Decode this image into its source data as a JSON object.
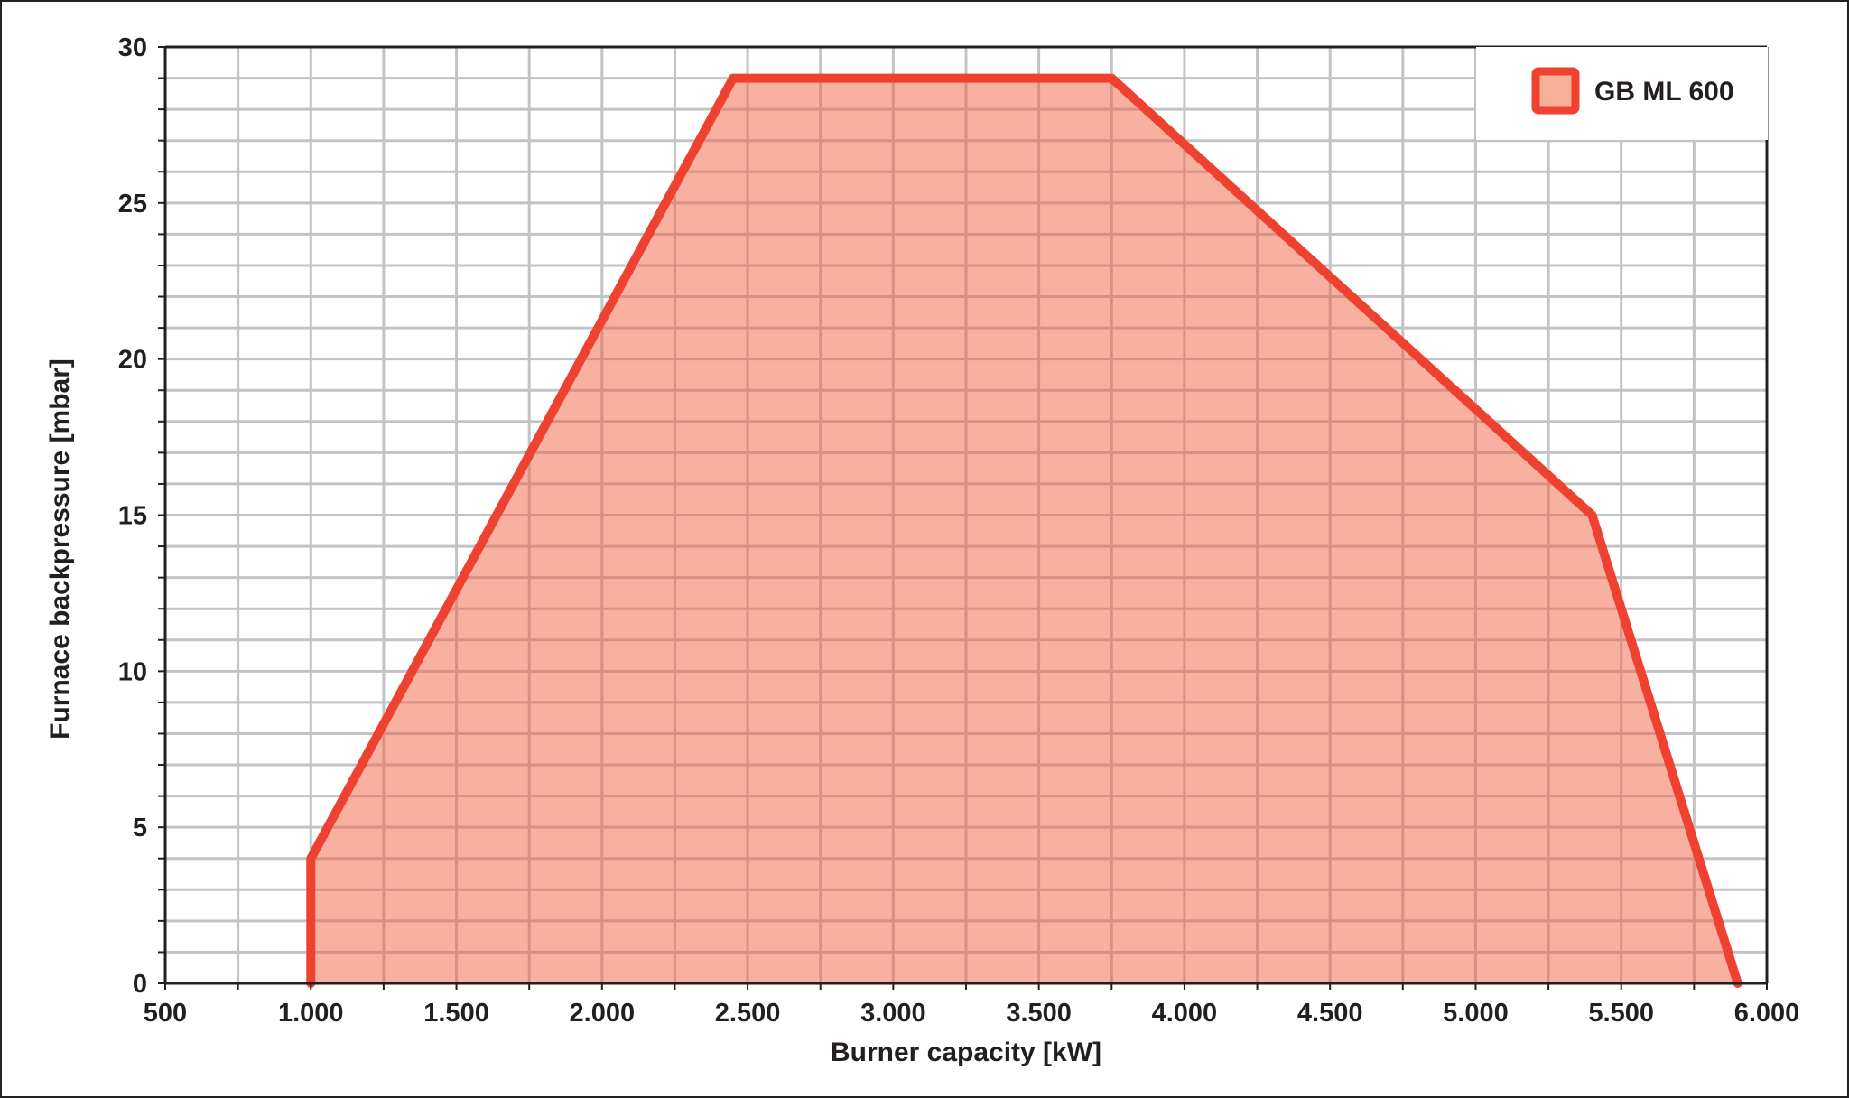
{
  "chart_data": {
    "type": "area",
    "xlabel": "Burner capacity [kW]",
    "ylabel": "Furnace backpressure [mbar]",
    "xlim": [
      500,
      6000
    ],
    "ylim": [
      0,
      30
    ],
    "x_ticks": [
      500,
      1000,
      1500,
      2000,
      2500,
      3000,
      3500,
      4000,
      4500,
      5000,
      5500,
      6000
    ],
    "x_tick_labels": [
      "500",
      "1.000",
      "1.500",
      "2.000",
      "2.500",
      "3.000",
      "3.500",
      "4.000",
      "4.500",
      "5.000",
      "5.500",
      "6.000"
    ],
    "y_ticks": [
      0,
      5,
      10,
      15,
      20,
      25,
      30
    ],
    "y_tick_labels": [
      "0",
      "5",
      "10",
      "15",
      "20",
      "25",
      "30"
    ],
    "grid": true,
    "x_minor_step": 250,
    "y_minor_step": 1,
    "legend_position": "top-right",
    "series": [
      {
        "name": "GB ML 600",
        "x": [
          1000,
          1000,
          2450,
          3750,
          5400,
          5900
        ],
        "y": [
          0,
          4,
          29,
          29,
          15,
          0
        ],
        "line_color": "#ef4130",
        "fill_color": "#f7b097"
      }
    ]
  }
}
